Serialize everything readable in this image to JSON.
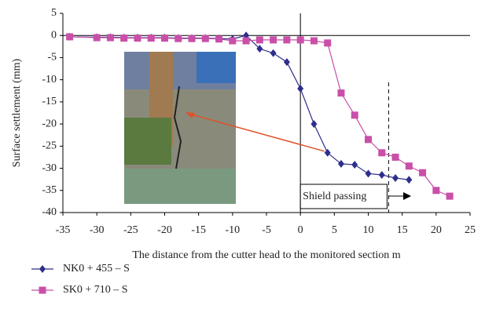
{
  "chart_data": {
    "type": "line",
    "y_label": "Surface settlement (mm)",
    "x_label": "The distance from the cutter head to the monitored section m",
    "annotation": "Shield passing",
    "xlim": [
      -35,
      25
    ],
    "xticks": [
      -35,
      -30,
      -25,
      -20,
      -15,
      -10,
      -5,
      0,
      5,
      10,
      15,
      20,
      25
    ],
    "ylim": [
      -40,
      5
    ],
    "yticks": [
      -40,
      -35,
      -30,
      -25,
      -20,
      -15,
      -10,
      -5,
      0,
      5
    ],
    "series": [
      {
        "name": "NK0 + 455 – S",
        "color": "#2e2e8c",
        "marker": "diamond",
        "x": [
          -34,
          -30,
          -28,
          -26,
          -24,
          -22,
          -20,
          -18,
          -16,
          -14,
          -12,
          -10,
          -8,
          -6,
          -4,
          -2,
          0,
          2,
          4,
          6,
          8,
          10,
          12,
          14,
          16
        ],
        "values": [
          -0.3,
          -0.4,
          -0.4,
          -0.5,
          -0.5,
          -0.5,
          -0.5,
          -0.6,
          -0.6,
          -0.6,
          -0.7,
          -0.8,
          0,
          -3,
          -4,
          -6,
          -12,
          -20,
          -26.5,
          -29,
          -29.2,
          -31.2,
          -31.5,
          -32.2,
          -32.6
        ]
      },
      {
        "name": "SK0 + 710 – S",
        "color": "#c94fa8",
        "marker": "square",
        "x": [
          -34,
          -30,
          -28,
          -26,
          -24,
          -22,
          -20,
          -18,
          -16,
          -14,
          -12,
          -10,
          -8,
          -6,
          -4,
          -2,
          0,
          2,
          4,
          6,
          8,
          10,
          12,
          14,
          16,
          18,
          20,
          22
        ],
        "values": [
          -0.3,
          -0.5,
          -0.5,
          -0.6,
          -0.6,
          -0.6,
          -0.6,
          -0.7,
          -0.7,
          -0.7,
          -0.8,
          -1.2,
          -1.2,
          -1,
          -1,
          -1,
          -1,
          -1.2,
          -1.7,
          -13,
          -18,
          -23.5,
          -26.5,
          -27.5,
          -29.5,
          -31,
          -35,
          -36.3
        ]
      }
    ]
  }
}
